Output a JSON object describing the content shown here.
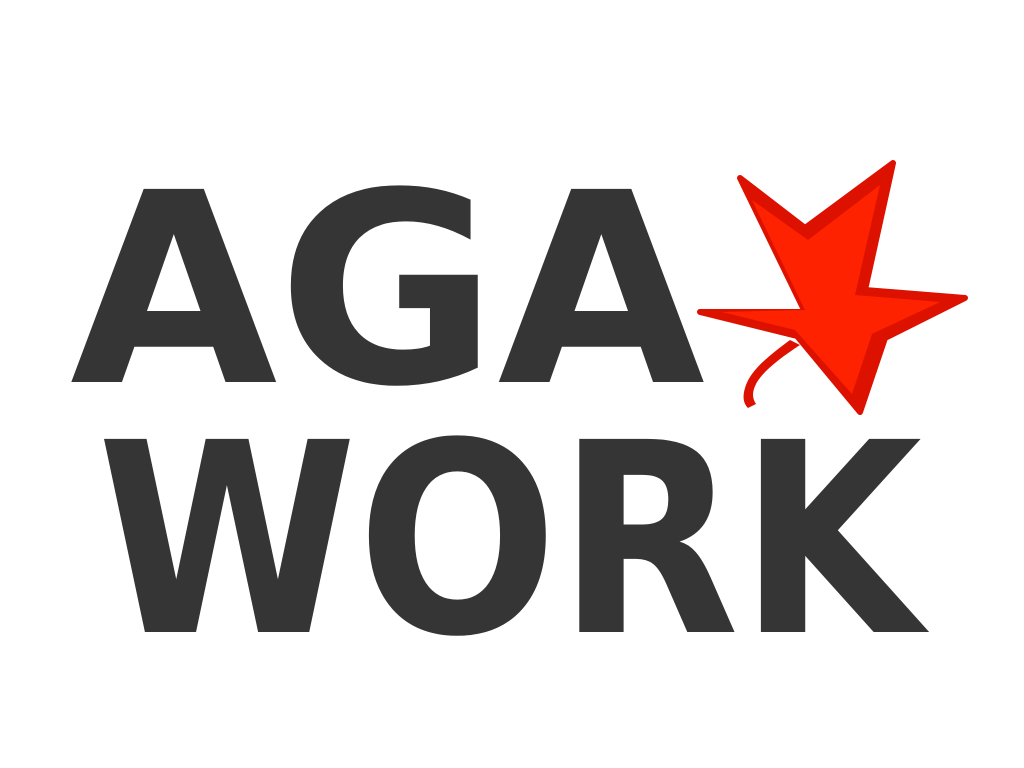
{
  "logo": {
    "line1": "AGA",
    "line2": "WORK",
    "text_color": "#353535",
    "leaf_color": "#ff2200",
    "leaf_outline_color": "#dd1100",
    "leaf_icon": "maple-leaf-icon"
  }
}
